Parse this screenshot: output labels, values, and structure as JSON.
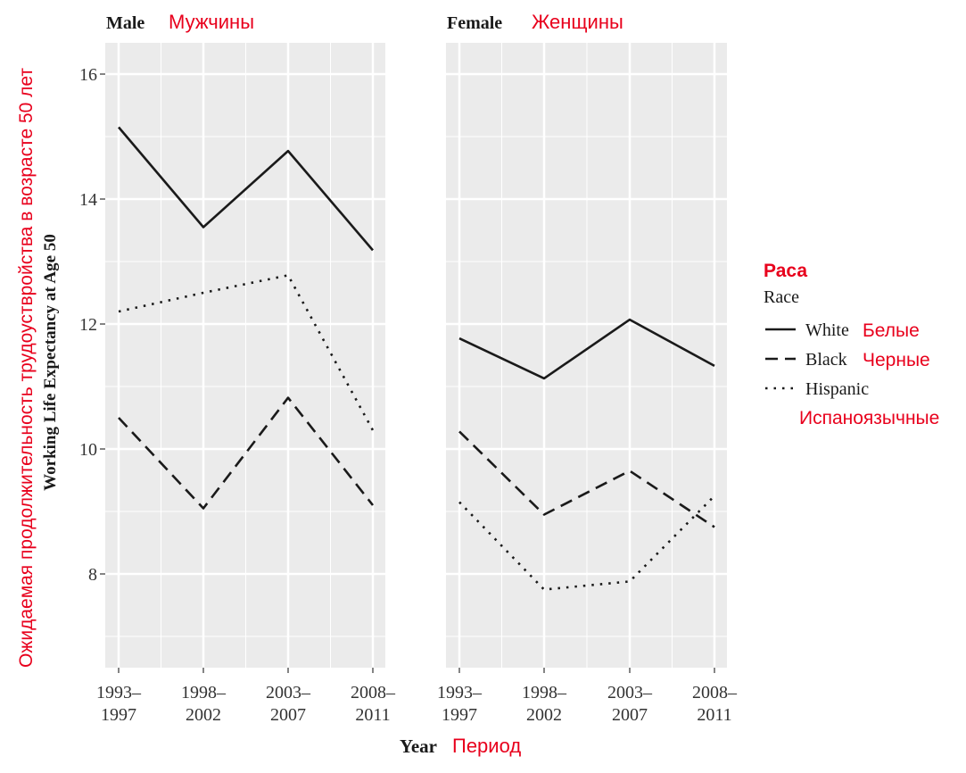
{
  "chart_data": {
    "type": "line",
    "ylabel": "Working Life Expectancy at Age 50",
    "ylabel_ru": "Ожидаемая продолжительность трудоуствройства в возрасте 50 лет",
    "xlabel": "Year",
    "xlabel_ru": "Период",
    "ylim": [
      6.5,
      16.5
    ],
    "yticks": [
      8,
      10,
      12,
      14,
      16
    ],
    "categories": [
      [
        "1993–",
        "1997"
      ],
      [
        "1998–",
        "2002"
      ],
      [
        "2003–",
        "2007"
      ],
      [
        "2008–",
        "2011"
      ]
    ],
    "legend": {
      "title": "Race",
      "title_ru": "Раса",
      "entries": [
        {
          "name": "White",
          "name_ru": "Белые",
          "dash": "solid"
        },
        {
          "name": "Black",
          "name_ru": "Черные",
          "dash": "dashed"
        },
        {
          "name": "Hispanic",
          "name_ru": "Испаноязычные",
          "dash": "dotted"
        }
      ]
    },
    "panels": [
      {
        "title": "Male",
        "title_ru": "Мужчины",
        "series": [
          {
            "name": "White",
            "values": [
              15.15,
              13.55,
              14.77,
              13.18
            ]
          },
          {
            "name": "Black",
            "values": [
              10.5,
              9.05,
              10.82,
              9.1
            ]
          },
          {
            "name": "Hispanic",
            "values": [
              12.2,
              12.5,
              12.78,
              10.3
            ]
          }
        ]
      },
      {
        "title": "Female",
        "title_ru": "Женщины",
        "series": [
          {
            "name": "White",
            "values": [
              11.77,
              11.13,
              12.07,
              11.33
            ]
          },
          {
            "name": "Black",
            "values": [
              10.28,
              8.95,
              9.65,
              8.75
            ]
          },
          {
            "name": "Hispanic",
            "values": [
              9.15,
              7.75,
              7.88,
              9.25
            ]
          }
        ]
      }
    ]
  },
  "style": {
    "panel_bg": "#ebebeb",
    "grid": "#ffffff",
    "line": "#1a1a1a",
    "annotation": "#e8001c"
  }
}
